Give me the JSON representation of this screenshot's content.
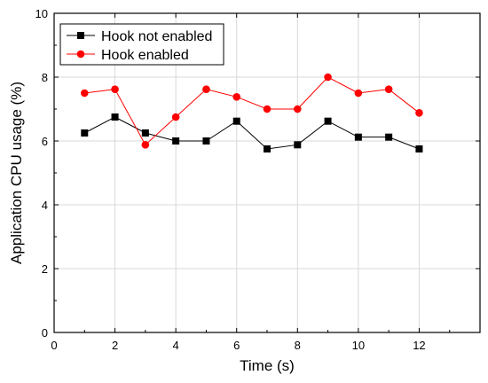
{
  "chart_data": {
    "type": "line",
    "title": "",
    "xlabel": "Time (s)",
    "ylabel": "Application CPU usage (%)",
    "xlim": [
      0,
      14
    ],
    "ylim": [
      0,
      10
    ],
    "xticks": [
      "0",
      "2",
      "4",
      "6",
      "8",
      "10",
      "12"
    ],
    "yticks": [
      "0",
      "2",
      "4",
      "6",
      "8",
      "10"
    ],
    "grid": true,
    "legend_position": "top-left",
    "x": [
      1,
      2,
      3,
      4,
      5,
      6,
      7,
      8,
      9,
      10,
      11,
      12
    ],
    "series": [
      {
        "name": "Hook not enabled",
        "color": "#000000",
        "marker": "square",
        "values": [
          6.25,
          6.75,
          6.25,
          6.0,
          6.0,
          6.62,
          5.75,
          5.88,
          6.62,
          6.12,
          6.12,
          5.75
        ]
      },
      {
        "name": "Hook enabled",
        "color": "#ff0000",
        "marker": "circle",
        "values": [
          7.5,
          7.62,
          5.88,
          6.75,
          7.62,
          7.38,
          7.0,
          7.0,
          8.0,
          7.5,
          7.62,
          6.88
        ]
      }
    ]
  }
}
